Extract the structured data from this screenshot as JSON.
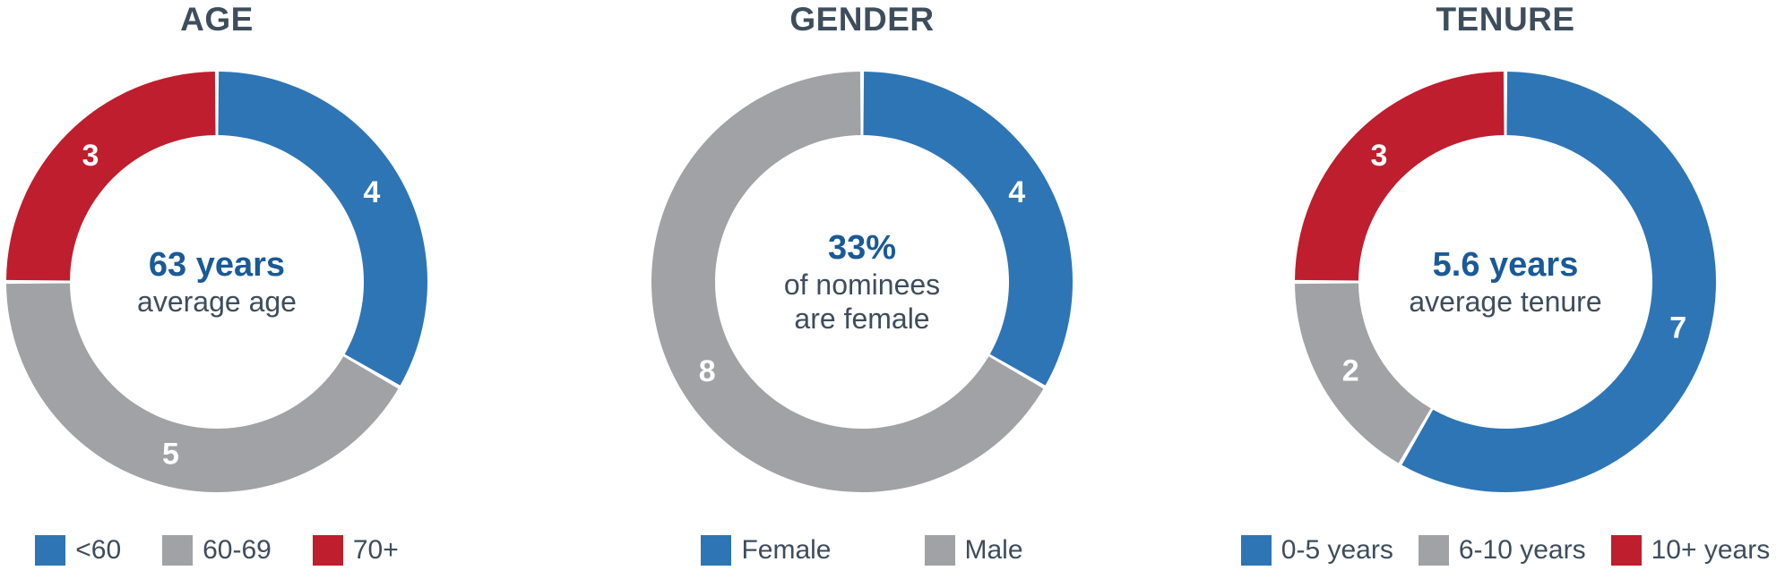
{
  "page": {
    "background": "#FFFFFF"
  },
  "colors": {
    "blue": "#2E75B5",
    "gray": "#A0A2A5",
    "red": "#BE1E2D",
    "title_text": "#3E4D5C",
    "center_accent": "#1A5A96",
    "center_sub": "#3E4D5C",
    "slice_label": "#FFFFFF"
  },
  "chart_data": [
    {
      "type": "pie",
      "variant": "donut",
      "title": "AGE",
      "center_headline": "63 years",
      "center_sublines": [
        "average age"
      ],
      "start_angle_deg": 0,
      "direction": "clockwise",
      "legend_position": "bottom",
      "segments": [
        {
          "label": "<60",
          "value": 4,
          "color": "#2E75B5"
        },
        {
          "label": "60-69",
          "value": 5,
          "color": "#A0A2A5"
        },
        {
          "label": "70+",
          "value": 3,
          "color": "#BE1E2D"
        }
      ]
    },
    {
      "type": "pie",
      "variant": "donut",
      "title": "GENDER",
      "center_headline": "33%",
      "center_sublines": [
        "of nominees",
        "are female"
      ],
      "start_angle_deg": 0,
      "direction": "clockwise",
      "legend_position": "bottom",
      "segments": [
        {
          "label": "Female",
          "value": 4,
          "color": "#2E75B5"
        },
        {
          "label": "Male",
          "value": 8,
          "color": "#A0A2A5"
        }
      ]
    },
    {
      "type": "pie",
      "variant": "donut",
      "title": "TENURE",
      "center_headline": "5.6 years",
      "center_sublines": [
        "average tenure"
      ],
      "start_angle_deg": 0,
      "direction": "clockwise",
      "legend_position": "bottom",
      "segments": [
        {
          "label": "0-5 years",
          "value": 7,
          "color": "#2E75B5"
        },
        {
          "label": "6-10 years",
          "value": 2,
          "color": "#A0A2A5"
        },
        {
          "label": "10+ years",
          "value": 3,
          "color": "#BE1E2D"
        }
      ]
    }
  ]
}
